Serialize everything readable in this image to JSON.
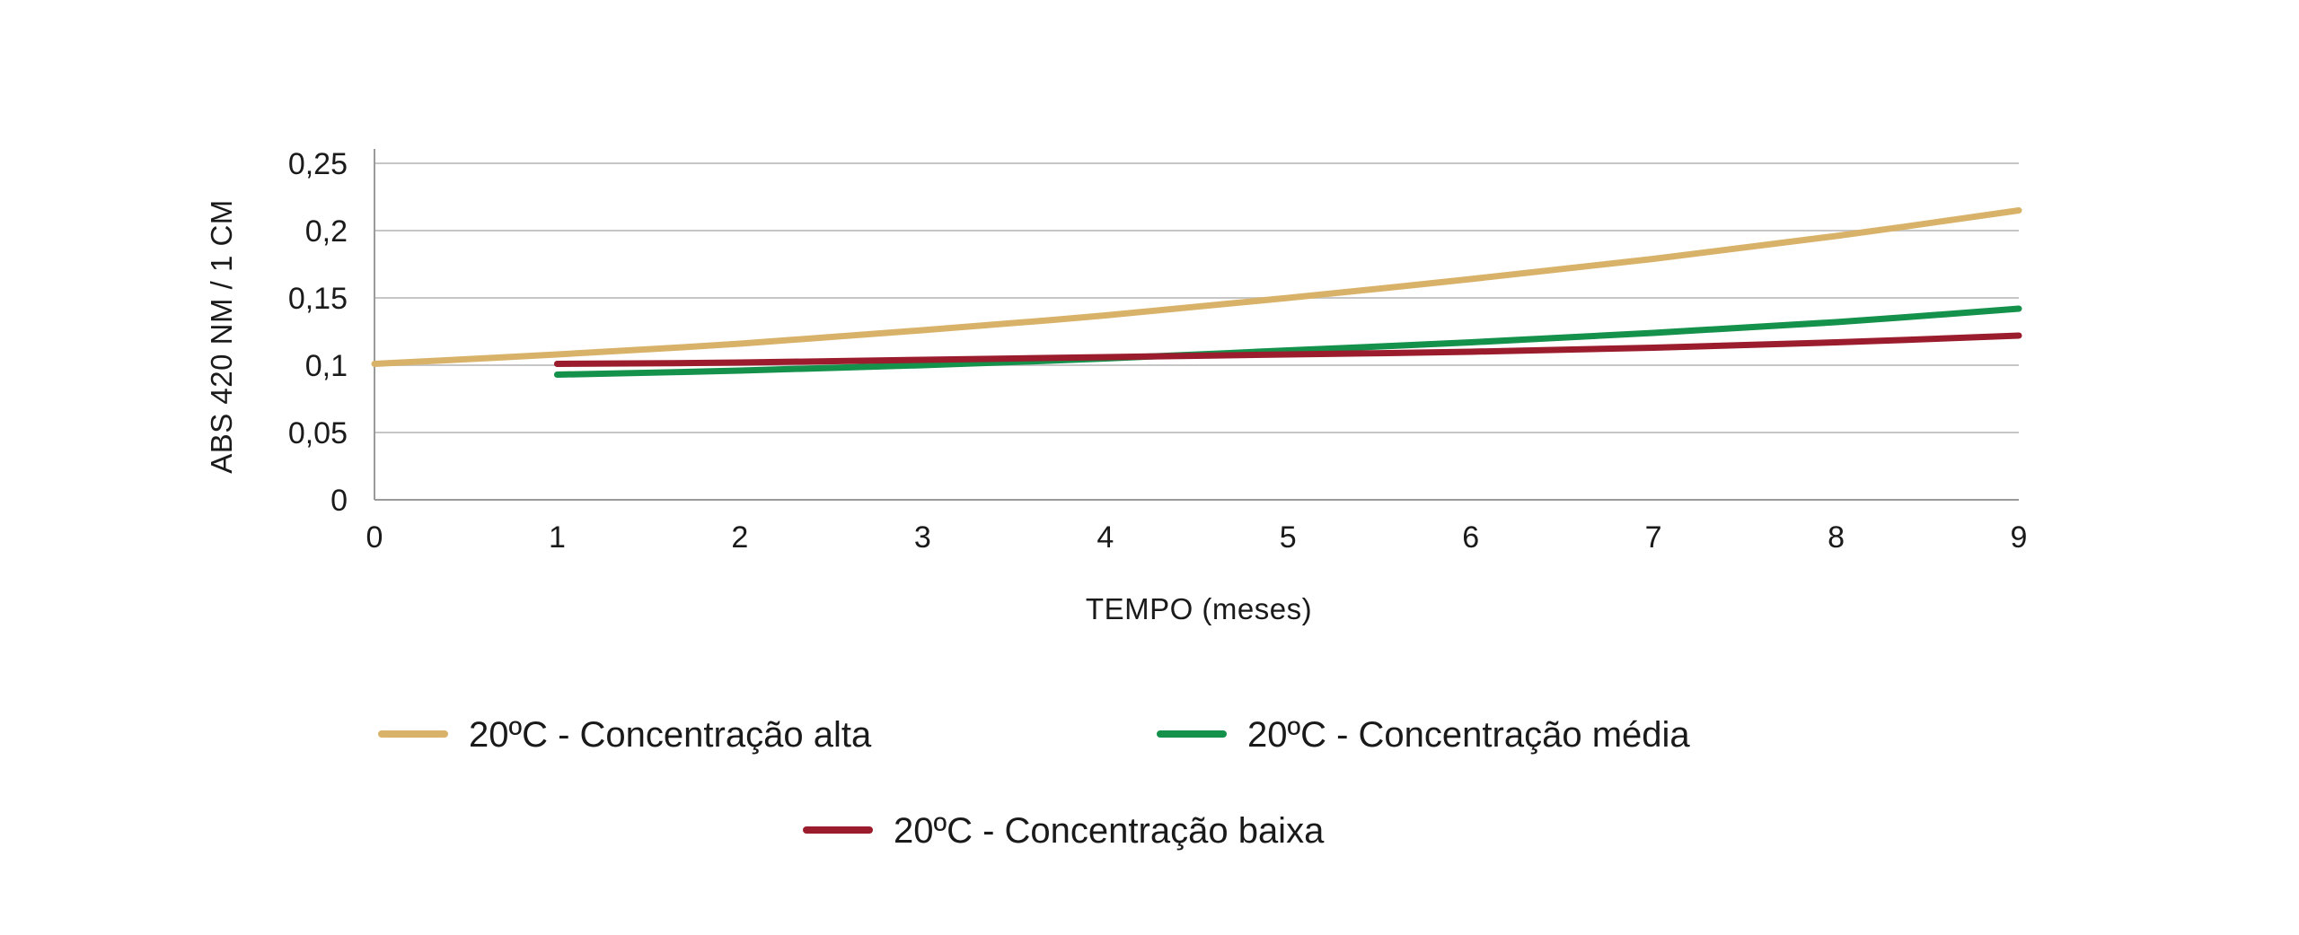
{
  "chart_data": {
    "type": "line",
    "xlabel": "TEMPO (meses)",
    "ylabel": "ABS 420 NM / 1 CM",
    "xlim": [
      0,
      9
    ],
    "ylim": [
      0,
      0.25
    ],
    "x_ticks": [
      0,
      1,
      2,
      3,
      4,
      5,
      6,
      7,
      8,
      9
    ],
    "x_tick_labels": [
      "0",
      "1",
      "2",
      "3",
      "4",
      "5",
      "6",
      "7",
      "8",
      "9"
    ],
    "y_ticks": [
      0,
      0.05,
      0.1,
      0.15,
      0.2,
      0.25
    ],
    "y_tick_labels": [
      "0",
      "0,05",
      "0,1",
      "0,15",
      "0,2",
      "0,25"
    ],
    "grid": "horizontal",
    "legend_placement": "bottom",
    "series": [
      {
        "name": "20ºC - Concentração alta",
        "color": "#D9B26A",
        "x": [
          0,
          1,
          2,
          3,
          4,
          5,
          6,
          7,
          8,
          9
        ],
        "values": [
          0.101,
          0.108,
          0.116,
          0.126,
          0.137,
          0.15,
          0.164,
          0.179,
          0.196,
          0.215
        ]
      },
      {
        "name": "20ºC - Concentração média",
        "color": "#14914A",
        "x": [
          1,
          2,
          3,
          4,
          5,
          6,
          7,
          8,
          9
        ],
        "values": [
          0.093,
          0.096,
          0.1,
          0.105,
          0.111,
          0.117,
          0.124,
          0.132,
          0.142
        ]
      },
      {
        "name": "20ºC - Concentração baixa",
        "color": "#9B1C2C",
        "x": [
          1,
          2,
          3,
          4,
          5,
          6,
          7,
          8,
          9
        ],
        "values": [
          0.101,
          0.102,
          0.104,
          0.106,
          0.108,
          0.11,
          0.113,
          0.117,
          0.122
        ]
      }
    ]
  }
}
